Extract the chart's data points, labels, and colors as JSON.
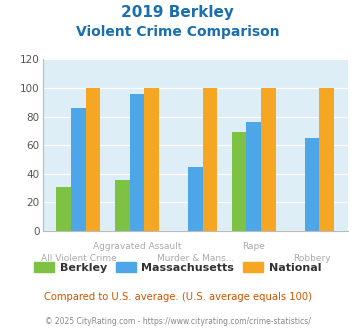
{
  "title_line1": "2019 Berkley",
  "title_line2": "Violent Crime Comparison",
  "berkley": [
    31,
    36,
    0,
    69,
    0
  ],
  "massachusetts": [
    86,
    96,
    45,
    76,
    65
  ],
  "national": [
    100,
    100,
    100,
    100,
    100
  ],
  "row1_labels": [
    "",
    "Aggravated Assault",
    "",
    "Rape",
    ""
  ],
  "row2_labels": [
    "All Violent Crime",
    "",
    "Murder & Mans...",
    "",
    "Robbery"
  ],
  "berkley_color": "#7dc242",
  "massachusetts_color": "#4da6e8",
  "national_color": "#f5a623",
  "ylim": [
    0,
    120
  ],
  "yticks": [
    0,
    20,
    40,
    60,
    80,
    100,
    120
  ],
  "bg_color": "#ddeef6",
  "title_color": "#1a6fad",
  "footer_text": "Compared to U.S. average. (U.S. average equals 100)",
  "footer_color": "#cc5500",
  "copyright_text": "© 2025 CityRating.com - https://www.cityrating.com/crime-statistics/",
  "copyright_color": "#888888",
  "legend_labels": [
    "Berkley",
    "Massachusetts",
    "National"
  ]
}
